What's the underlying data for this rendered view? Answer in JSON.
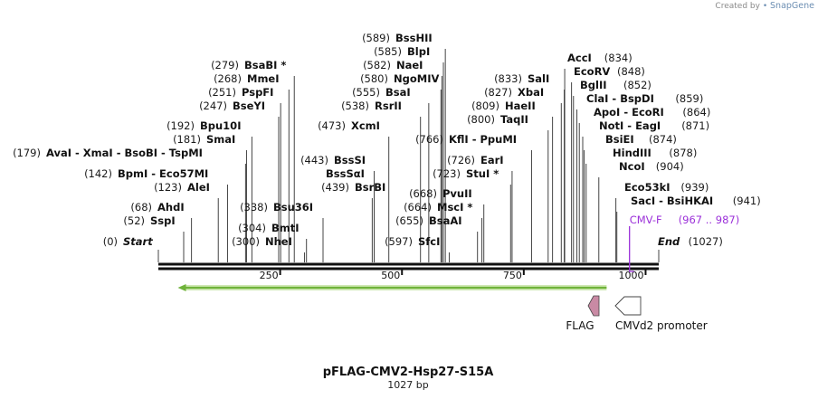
{
  "credit": {
    "prefix": "Created by",
    "brand": "SnapGene"
  },
  "plasmid": {
    "name": "pFLAG-CMV2-Hsp27-S15A",
    "length_label": "1027 bp",
    "length": 1027
  },
  "ends": {
    "start_pos": "(0)",
    "start_label": "Start",
    "end_label": "End",
    "end_pos": "(1027)"
  },
  "ruler": {
    "ticks": [
      250,
      500,
      750,
      1000
    ]
  },
  "sites": [
    {
      "pos": 0,
      "pos_label": "(0)",
      "name": "Start"
    },
    {
      "pos": 52,
      "pos_label": "(52)",
      "name": "SspI"
    },
    {
      "pos": 68,
      "pos_label": "(68)",
      "name": "AhdI"
    },
    {
      "pos": 123,
      "pos_label": "(123)",
      "name": "AleI"
    },
    {
      "pos": 142,
      "pos_label": "(142)",
      "name": "BpmI - Eco57MI"
    },
    {
      "pos": 179,
      "pos_label": "(179)",
      "name": "AvaI - XmaI - BsoBI - TspMI"
    },
    {
      "pos": 181,
      "pos_label": "(181)",
      "name": "SmaI"
    },
    {
      "pos": 192,
      "pos_label": "(192)",
      "name": "Bpu10I"
    },
    {
      "pos": 247,
      "pos_label": "(247)",
      "name": "BseYI"
    },
    {
      "pos": 251,
      "pos_label": "(251)",
      "name": "PspFI"
    },
    {
      "pos": 268,
      "pos_label": "(268)",
      "name": "MmeI"
    },
    {
      "pos": 279,
      "pos_label": "(279)",
      "name": "BsaBI *"
    },
    {
      "pos": 300,
      "pos_label": "(300)",
      "name": "NheI"
    },
    {
      "pos": 304,
      "pos_label": "(304)",
      "name": "BmtI"
    },
    {
      "pos": 338,
      "pos_label": "(338)",
      "name": "Bsu36I"
    },
    {
      "pos": 439,
      "pos_label": "(439)",
      "name": "BsrBI"
    },
    {
      "pos": 443,
      "pos_label": "",
      "name": "BssSαI"
    },
    {
      "pos": 443,
      "pos_label": "(443)",
      "name": "BssSI"
    },
    {
      "pos": 473,
      "pos_label": "(473)",
      "name": "XcmI"
    },
    {
      "pos": 538,
      "pos_label": "(538)",
      "name": "RsrII"
    },
    {
      "pos": 555,
      "pos_label": "(555)",
      "name": "BsaI"
    },
    {
      "pos": 580,
      "pos_label": "(580)",
      "name": "NgoMIV"
    },
    {
      "pos": 582,
      "pos_label": "(582)",
      "name": "NaeI"
    },
    {
      "pos": 585,
      "pos_label": "(585)",
      "name": "BlpI"
    },
    {
      "pos": 589,
      "pos_label": "(589)",
      "name": "BssHII"
    },
    {
      "pos": 597,
      "pos_label": "(597)",
      "name": "SfcI"
    },
    {
      "pos": 655,
      "pos_label": "(655)",
      "name": "BsaAI"
    },
    {
      "pos": 664,
      "pos_label": "(664)",
      "name": "MscI *"
    },
    {
      "pos": 668,
      "pos_label": "(668)",
      "name": "PvuII"
    },
    {
      "pos": 723,
      "pos_label": "(723)",
      "name": "StuI *"
    },
    {
      "pos": 726,
      "pos_label": "(726)",
      "name": "EarI"
    },
    {
      "pos": 766,
      "pos_label": "(766)",
      "name": "KflI - PpuMI"
    },
    {
      "pos": 800,
      "pos_label": "(800)",
      "name": "TaqII"
    },
    {
      "pos": 809,
      "pos_label": "(809)",
      "name": "HaeII"
    },
    {
      "pos": 827,
      "pos_label": "(827)",
      "name": "XbaI"
    },
    {
      "pos": 833,
      "pos_label": "(833)",
      "name": "SalI"
    },
    {
      "pos": 834,
      "pos_label": "(834)",
      "name": "AccI"
    },
    {
      "pos": 848,
      "pos_label": "(848)",
      "name": "EcoRV"
    },
    {
      "pos": 852,
      "pos_label": "(852)",
      "name": "BglII"
    },
    {
      "pos": 859,
      "pos_label": "(859)",
      "name": "ClaI - BspDI"
    },
    {
      "pos": 864,
      "pos_label": "(864)",
      "name": "ApoI - EcoRI"
    },
    {
      "pos": 871,
      "pos_label": "(871)",
      "name": "NotI - EagI"
    },
    {
      "pos": 874,
      "pos_label": "(874)",
      "name": "BsiEI"
    },
    {
      "pos": 878,
      "pos_label": "(878)",
      "name": "HindIII"
    },
    {
      "pos": 904,
      "pos_label": "(904)",
      "name": "NcoI"
    },
    {
      "pos": 939,
      "pos_label": "(939)",
      "name": "Eco53kI"
    },
    {
      "pos": 941,
      "pos_label": "(941)",
      "name": "SacI - BsiHKAI"
    },
    {
      "pos": 1027,
      "pos_label": "(1027)",
      "name": "End"
    }
  ],
  "primer": {
    "name": "CMV-F",
    "range": "(967 .. 987)",
    "start": 967,
    "end": 987,
    "color": "#9b30d9"
  },
  "features": [
    {
      "name": "Hsp27-S15A ORF",
      "start": 40,
      "end": 920,
      "direction": "reverse",
      "color": "#6fb33a",
      "labeled": false
    },
    {
      "name": "FLAG",
      "start": 896,
      "end": 920,
      "direction": "reverse",
      "color": "#c98aa4",
      "labeled": true
    },
    {
      "name": "CMVd2 promoter",
      "start": 952,
      "end": 1027,
      "direction": "reverse",
      "color": "#ffffff",
      "labeled": true
    }
  ]
}
